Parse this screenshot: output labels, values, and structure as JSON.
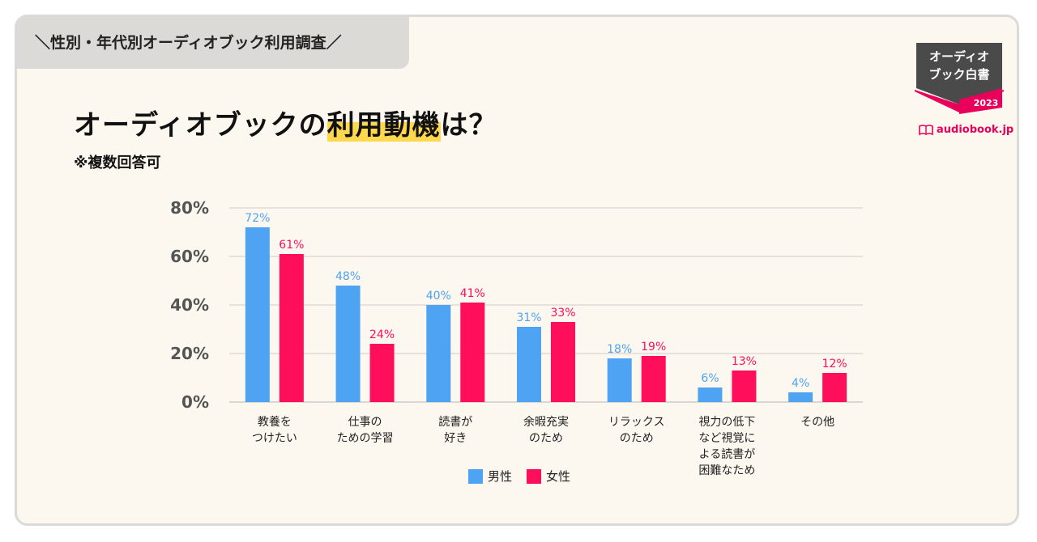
{
  "tab_title": "＼性別・年代別オーディオブック利用調査／",
  "heading": {
    "before": "オーディオブックの",
    "highlight": "利用動機",
    "after": "は？"
  },
  "note": "※複数回答可",
  "logo": {
    "line1": "オーディオ",
    "line2": "ブック白書",
    "year": "2023"
  },
  "brand": "audiobook.jp",
  "colors": {
    "male": "#4ea4f2",
    "female": "#ff0e5c",
    "highlight": "#ffd84d",
    "logo_dark": "#4a4a4a",
    "logo_pink": "#e8005a"
  },
  "legend": {
    "male": "男性",
    "female": "女性"
  },
  "chart_data": {
    "type": "bar",
    "categories": [
      [
        "教養を",
        "つけたい"
      ],
      [
        "仕事の",
        "ための学習"
      ],
      [
        "読書が",
        "好き"
      ],
      [
        "余暇充実",
        "のため"
      ],
      [
        "リラックス",
        "のため"
      ],
      [
        "視力の低下",
        "など視覚に",
        "よる読書が",
        "困難なため"
      ],
      [
        "その他"
      ]
    ],
    "series": [
      {
        "name": "男性",
        "values": [
          72,
          48,
          40,
          31,
          18,
          6,
          4
        ],
        "labels": [
          "72%",
          "48%",
          "40%",
          "31%",
          "18%",
          "6%",
          "4%"
        ]
      },
      {
        "name": "女性",
        "values": [
          61,
          24,
          41,
          33,
          19,
          13,
          12
        ],
        "labels": [
          "61%",
          "24%",
          "41%",
          "33%",
          "19%",
          "13%",
          "12%"
        ]
      }
    ],
    "yticks": [
      0,
      20,
      40,
      60,
      80
    ],
    "ytick_labels": [
      "0%",
      "20%",
      "40%",
      "60%",
      "80%"
    ],
    "ylim": [
      0,
      80
    ],
    "grid": true,
    "legend_position": "bottom-center"
  }
}
